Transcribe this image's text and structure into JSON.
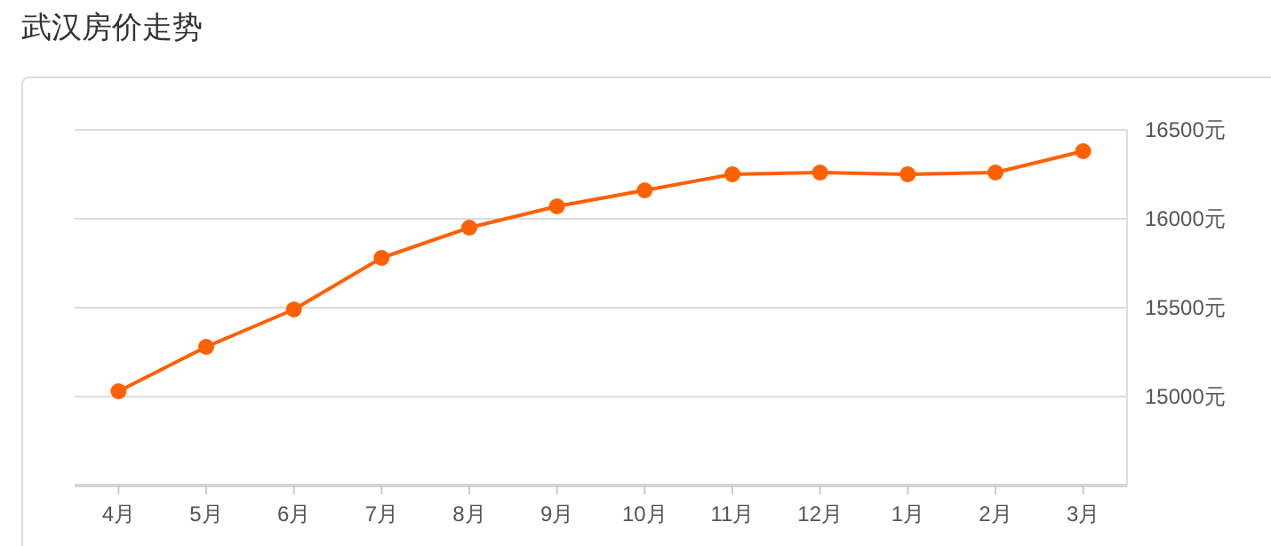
{
  "chart_data": {
    "type": "line",
    "title": "武汉房价走势",
    "categories": [
      "4月",
      "5月",
      "6月",
      "7月",
      "8月",
      "9月",
      "10月",
      "11月",
      "12月",
      "1月",
      "2月",
      "3月"
    ],
    "series": [
      {
        "color": "#ff6000",
        "values": [
          15030,
          15280,
          15490,
          15780,
          15950,
          16070,
          16160,
          16250,
          16260,
          16250,
          16260,
          16380
        ]
      }
    ],
    "ylim": [
      14500,
      16500
    ],
    "yticks": [
      {
        "value": 15000,
        "label": "15000元"
      },
      {
        "value": 15500,
        "label": "15500元"
      },
      {
        "value": 16000,
        "label": "16000元"
      },
      {
        "value": 16500,
        "label": "16500元"
      }
    ],
    "grid": "y",
    "marker": "circle",
    "line_style": "solid"
  }
}
